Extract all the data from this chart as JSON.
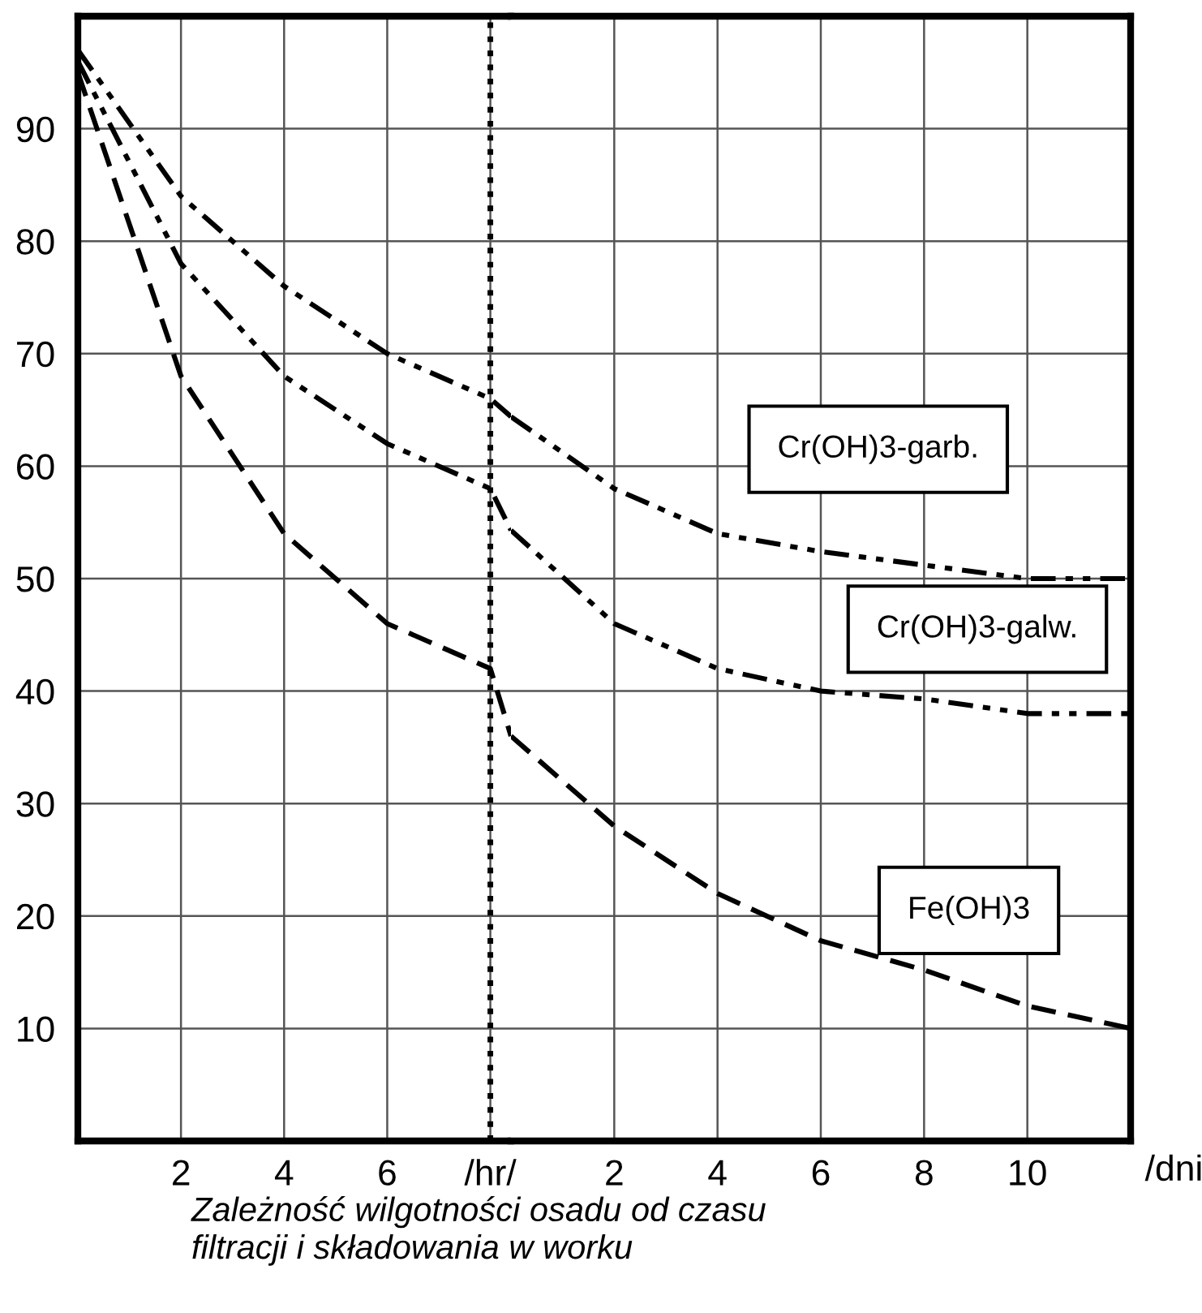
{
  "chart_data": [
    {
      "type": "line",
      "x": [
        0,
        2,
        4,
        6,
        8,
        8.4
      ],
      "series": [
        {
          "color": "#000000",
          "line_style": "dashdotdot",
          "values": [
            97,
            84,
            76,
            70,
            66,
            64.4
          ]
        },
        {
          "color": "#000000",
          "line_style": "dashdotdot",
          "values": [
            96,
            78,
            68,
            62,
            58,
            54.3
          ]
        },
        {
          "color": "#000000",
          "line_style": "dashed",
          "values": [
            95,
            68,
            54,
            46,
            42,
            36
          ]
        }
      ],
      "xlim": [
        0,
        8.4
      ],
      "ylim": [
        0,
        100
      ],
      "xticks": [
        2,
        4,
        6,
        {
          "value": 8,
          "label": "/hr/"
        }
      ],
      "yticks": [
        10,
        20,
        30,
        40,
        50,
        60,
        70,
        80,
        90
      ],
      "ref_lines": [
        {
          "axis": "x",
          "value": 8,
          "line_style": "dotted",
          "color": "#000000"
        }
      ],
      "grid": true,
      "marker": "none"
    },
    {
      "type": "line",
      "xlabel": "/dni",
      "annotations": [
        "Zależność wilgotności osadu od czasu\nfiltracji i składowania w worku"
      ],
      "x": [
        0,
        2,
        4,
        6,
        8,
        10,
        12
      ],
      "series": [
        {
          "name": "Cr(OH)3-garb.",
          "color": "#000000",
          "line_style": "dashdotdot",
          "values": [
            64.4,
            58,
            54,
            52.4,
            51.2,
            50,
            50
          ]
        },
        {
          "name": "Cr(OH)3-galw.",
          "color": "#000000",
          "line_style": "dashdotdot",
          "values": [
            54.3,
            46,
            42,
            40,
            39.3,
            38,
            38
          ]
        },
        {
          "name": "Fe(OH)3",
          "color": "#000000",
          "line_style": "dashed",
          "values": [
            36,
            28,
            22,
            17.8,
            15.2,
            12,
            10
          ]
        }
      ],
      "xlim": [
        0,
        12
      ],
      "ylim": [
        0,
        100
      ],
      "xticks": [
        2,
        4,
        6,
        8,
        10
      ],
      "yticks": [
        10,
        20,
        30,
        40,
        50,
        60,
        70,
        80,
        90
      ],
      "tick_labels": "x",
      "grid": true,
      "marker": "none"
    }
  ]
}
